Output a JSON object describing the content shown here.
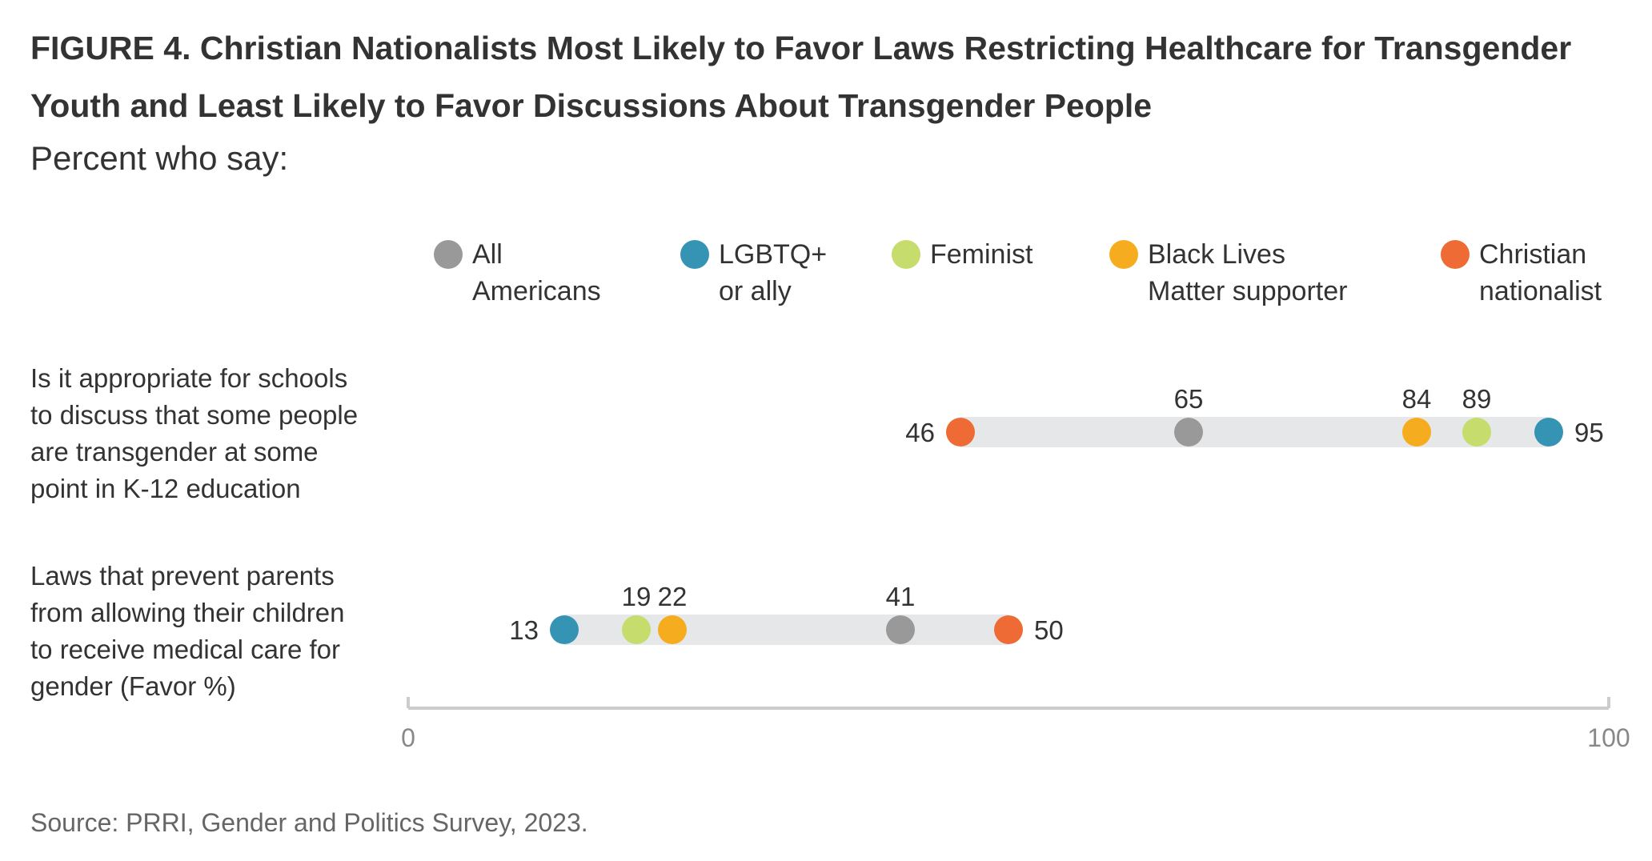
{
  "title": "FIGURE 4. Christian Nationalists Most Likely to Favor Laws Restricting Healthcare for Transgender Youth and Least Likely to Favor Discussions About Transgender People",
  "subtitle": "Percent who say:",
  "source": "Source: PRRI, Gender and Politics Survey, 2023.",
  "chart_data": {
    "type": "dot",
    "xlim": [
      0,
      100
    ],
    "x_ticks": [
      "0",
      "100"
    ],
    "legend_position": "top",
    "series": [
      {
        "name": "All Americans",
        "legend_lines": [
          "All",
          "Americans"
        ],
        "color": "#999999",
        "values": [
          65,
          41
        ]
      },
      {
        "name": "LGBTQ+ or ally",
        "legend_lines": [
          "LGBTQ+",
          "or ally"
        ],
        "color": "#3593b3",
        "values": [
          95,
          13
        ]
      },
      {
        "name": "Feminist",
        "legend_lines": [
          "Feminist"
        ],
        "color": "#c6dc6c",
        "values": [
          89,
          19
        ]
      },
      {
        "name": "Black Lives Matter supporter",
        "legend_lines": [
          "Black Lives",
          "Matter supporter"
        ],
        "color": "#f6ac1f",
        "values": [
          84,
          22
        ]
      },
      {
        "name": "Christian nationalist",
        "legend_lines": [
          "Christian",
          "nationalist"
        ],
        "color": "#ee6b35",
        "values": [
          46,
          50
        ]
      }
    ],
    "categories": [
      {
        "label_lines": [
          "Is it appropriate for schools",
          "to discuss that some people",
          "are transgender at some",
          "point in K-12 education"
        ]
      },
      {
        "label_lines": [
          "Laws that prevent parents",
          "from allowing their children",
          "to receive medical care for",
          "gender  (Favor %)"
        ]
      }
    ]
  }
}
